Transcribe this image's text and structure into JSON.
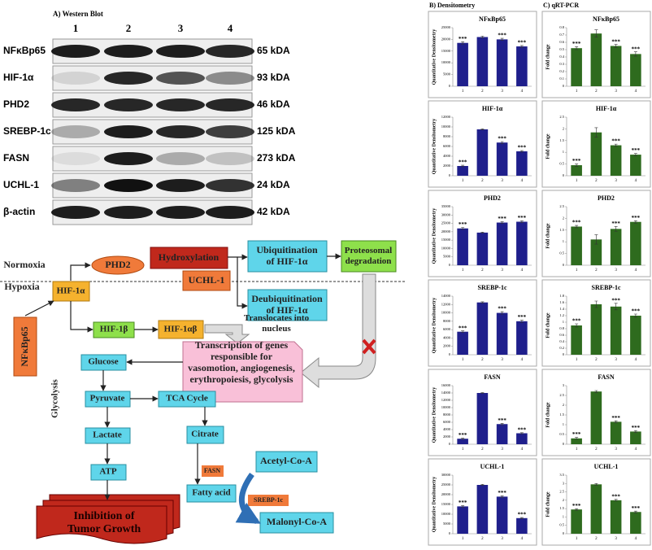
{
  "western_blot": {
    "title": "A) Western Blot",
    "lanes": [
      "1",
      "2",
      "3",
      "4"
    ],
    "rows": [
      {
        "protein": "NFκBp65",
        "size": "65 kDA"
      },
      {
        "protein": "HIF-1α",
        "size": "93 kDA"
      },
      {
        "protein": "PHD2",
        "size": "46 kDA"
      },
      {
        "protein": "SREBP-1c",
        "size": "125 kDA"
      },
      {
        "protein": "FASN",
        "size": "273 kDA"
      },
      {
        "protein": "UCHL-1",
        "size": "24 kDA"
      },
      {
        "protein": "β-actin",
        "size": "42 kDA"
      }
    ]
  },
  "diagram": {
    "nodes": [
      {
        "lines": [
          "Normoxia"
        ]
      },
      {
        "lines": [
          "Hypoxia"
        ]
      },
      {
        "lines": [
          "PHD2"
        ]
      },
      {
        "lines": [
          "Hydroxylation"
        ]
      },
      {
        "lines": [
          "Ubiquitination",
          "of HIF-1α"
        ]
      },
      {
        "lines": [
          "Proteosomal",
          "degradation"
        ]
      },
      {
        "lines": [
          "UCHL-1"
        ]
      },
      {
        "lines": [
          "Deubiquitination",
          "of HIF-1α"
        ]
      },
      {
        "lines": [
          "HIF-1α"
        ]
      },
      {
        "lines": [
          "NFκBp65"
        ]
      },
      {
        "lines": [
          "HIF-1β"
        ]
      },
      {
        "lines": [
          "HIF-1αβ"
        ]
      },
      {
        "lines": [
          "Translocates into",
          "nucleus"
        ]
      },
      {
        "lines": [
          "Transcription of genes",
          "responsible  for",
          "vasomotion, angiogenesis,",
          "erythropoiesis, glycolysis"
        ]
      },
      {
        "lines": [
          "Glucose"
        ]
      },
      {
        "lines": [
          "Glycolysis"
        ]
      },
      {
        "lines": [
          "Pyruvate"
        ]
      },
      {
        "lines": [
          "TCA Cycle"
        ]
      },
      {
        "lines": [
          "Lactate"
        ]
      },
      {
        "lines": [
          "Citrate"
        ]
      },
      {
        "lines": [
          "ATP"
        ]
      },
      {
        "lines": [
          "FASN"
        ]
      },
      {
        "lines": [
          "Fatty acid"
        ]
      },
      {
        "lines": [
          "Acetyl-Co-A"
        ]
      },
      {
        "lines": [
          "SREBP-1c"
        ]
      },
      {
        "lines": [
          "Malonyl-Co-A"
        ]
      },
      {
        "lines": [
          "Inhibition of",
          "Tumor Growth"
        ]
      }
    ]
  },
  "panels": [
    "B) Densitometry",
    "C) qRT-PCR"
  ],
  "chart_data": [
    {
      "type": "bar",
      "title": "NFκBp65",
      "ylabel": "Quantitative Densitometry",
      "color": "#1f1f8c",
      "categories": [
        "1",
        "2",
        "3",
        "4"
      ],
      "values": [
        18500,
        21000,
        20000,
        17000
      ],
      "errors": [
        500,
        400,
        450,
        400
      ],
      "annotations": [
        "***",
        null,
        "***",
        "***"
      ],
      "ylim": [
        0,
        25000
      ],
      "yticks": [
        0,
        5000,
        10000,
        15000,
        20000,
        25000
      ]
    },
    {
      "type": "bar",
      "title": "HIF-1α",
      "ylabel": "Quantitative Densitometry",
      "color": "#1f1f8c",
      "categories": [
        "1",
        "2",
        "3",
        "4"
      ],
      "values": [
        2000,
        9500,
        6800,
        5000
      ],
      "errors": [
        150,
        100,
        200,
        150
      ],
      "annotations": [
        "***",
        null,
        "***",
        "***"
      ],
      "ylim": [
        0,
        12000
      ],
      "yticks": [
        0,
        2000,
        4000,
        6000,
        8000,
        10000,
        12000
      ]
    },
    {
      "type": "bar",
      "title": "PHD2",
      "ylabel": "Quantitative Densitometry",
      "color": "#1f1f8c",
      "categories": [
        "1",
        "2",
        "3",
        "4"
      ],
      "values": [
        22000,
        19500,
        25500,
        26000
      ],
      "errors": [
        600,
        300,
        500,
        500
      ],
      "annotations": [
        "***",
        null,
        "***",
        "***"
      ],
      "ylim": [
        0,
        35000
      ],
      "yticks": [
        0,
        5000,
        10000,
        15000,
        20000,
        25000,
        30000,
        35000
      ]
    },
    {
      "type": "bar",
      "title": "SREBP-1c",
      "ylabel": "Quantitative Densitometry",
      "color": "#1f1f8c",
      "categories": [
        "1",
        "2",
        "3",
        "4"
      ],
      "values": [
        5500,
        12500,
        10000,
        8000
      ],
      "errors": [
        200,
        150,
        300,
        250
      ],
      "annotations": [
        "***",
        null,
        "***",
        "***"
      ],
      "ylim": [
        0,
        14000
      ],
      "yticks": [
        0,
        2000,
        4000,
        6000,
        8000,
        10000,
        12000,
        14000
      ]
    },
    {
      "type": "bar",
      "title": "FASN",
      "ylabel": "Quantitative Densitometry",
      "color": "#1f1f8c",
      "categories": [
        "1",
        "2",
        "3",
        "4"
      ],
      "values": [
        1500,
        14000,
        5500,
        3000
      ],
      "errors": [
        150,
        100,
        200,
        150
      ],
      "annotations": [
        "***",
        null,
        "***",
        "***"
      ],
      "ylim": [
        0,
        16000
      ],
      "yticks": [
        0,
        2000,
        4000,
        6000,
        8000,
        10000,
        12000,
        14000,
        16000
      ]
    },
    {
      "type": "bar",
      "title": "UCHL-1",
      "ylabel": "Quantitative Densitometry",
      "color": "#1f1f8c",
      "categories": [
        "1",
        "2",
        "3",
        "4"
      ],
      "values": [
        14000,
        25000,
        19000,
        8000
      ],
      "errors": [
        400,
        300,
        400,
        300
      ],
      "annotations": [
        "***",
        null,
        "***",
        "***"
      ],
      "ylim": [
        0,
        30000
      ],
      "yticks": [
        0,
        5000,
        10000,
        15000,
        20000,
        25000,
        30000
      ]
    },
    {
      "type": "bar",
      "title": "NFκBp65",
      "ylabel": "Fold change",
      "color": "#2e6b1e",
      "categories": [
        "1",
        "2",
        "3",
        "4"
      ],
      "values": [
        0.52,
        0.72,
        0.55,
        0.44
      ],
      "errors": [
        0.02,
        0.05,
        0.02,
        0.03
      ],
      "annotations": [
        "***",
        null,
        "***",
        "***"
      ],
      "ylim": [
        0,
        0.8
      ],
      "yticks": [
        0,
        0.1,
        0.2,
        0.3,
        0.4,
        0.5,
        0.6,
        0.7,
        0.8
      ]
    },
    {
      "type": "bar",
      "title": "HIF-1α",
      "ylabel": "Fold change",
      "color": "#2e6b1e",
      "categories": [
        "1",
        "2",
        "3",
        "4"
      ],
      "values": [
        0.45,
        1.85,
        1.3,
        0.9
      ],
      "errors": [
        0.05,
        0.2,
        0.05,
        0.05
      ],
      "annotations": [
        "***",
        null,
        "***",
        "***"
      ],
      "ylim": [
        0,
        2.5
      ],
      "yticks": [
        0,
        0.5,
        1,
        1.5,
        2,
        2.5
      ]
    },
    {
      "type": "bar",
      "title": "PHD2",
      "ylabel": "Fold change",
      "color": "#2e6b1e",
      "categories": [
        "1",
        "2",
        "3",
        "4"
      ],
      "values": [
        1.65,
        1.1,
        1.55,
        1.85
      ],
      "errors": [
        0.05,
        0.2,
        0.1,
        0.05
      ],
      "annotations": [
        "***",
        null,
        "***",
        "***"
      ],
      "ylim": [
        0,
        2.5
      ],
      "yticks": [
        0,
        0.5,
        1,
        1.5,
        2,
        2.5
      ]
    },
    {
      "type": "bar",
      "title": "SREBP-1c",
      "ylabel": "Fold change",
      "color": "#2e6b1e",
      "categories": [
        "1",
        "2",
        "3",
        "4"
      ],
      "values": [
        0.9,
        1.55,
        1.48,
        1.2
      ],
      "errors": [
        0.05,
        0.1,
        0.1,
        0.05
      ],
      "annotations": [
        "***",
        null,
        "***",
        "***"
      ],
      "ylim": [
        0,
        1.8
      ],
      "yticks": [
        0,
        0.2,
        0.4,
        0.6,
        0.8,
        1,
        1.2,
        1.4,
        1.6,
        1.8
      ]
    },
    {
      "type": "bar",
      "title": "FASN",
      "ylabel": "Fold change",
      "color": "#2e6b1e",
      "categories": [
        "1",
        "2",
        "3",
        "4"
      ],
      "values": [
        0.3,
        2.7,
        1.15,
        0.65
      ],
      "errors": [
        0.05,
        0.05,
        0.05,
        0.05
      ],
      "annotations": [
        "***",
        null,
        "***",
        "***"
      ],
      "ylim": [
        0,
        3
      ],
      "yticks": [
        0,
        0.5,
        1,
        1.5,
        2,
        2.5,
        3
      ]
    },
    {
      "type": "bar",
      "title": "UCHL-1",
      "ylabel": "Fold change",
      "color": "#2e6b1e",
      "categories": [
        "1",
        "2",
        "3",
        "4"
      ],
      "values": [
        1.45,
        2.95,
        2.0,
        1.3
      ],
      "errors": [
        0.05,
        0.05,
        0.05,
        0.05
      ],
      "annotations": [
        "***",
        null,
        "***",
        "***"
      ],
      "ylim": [
        0,
        3.5
      ],
      "yticks": [
        0,
        0.5,
        1,
        1.5,
        2,
        2.5,
        3,
        3.5
      ]
    }
  ]
}
